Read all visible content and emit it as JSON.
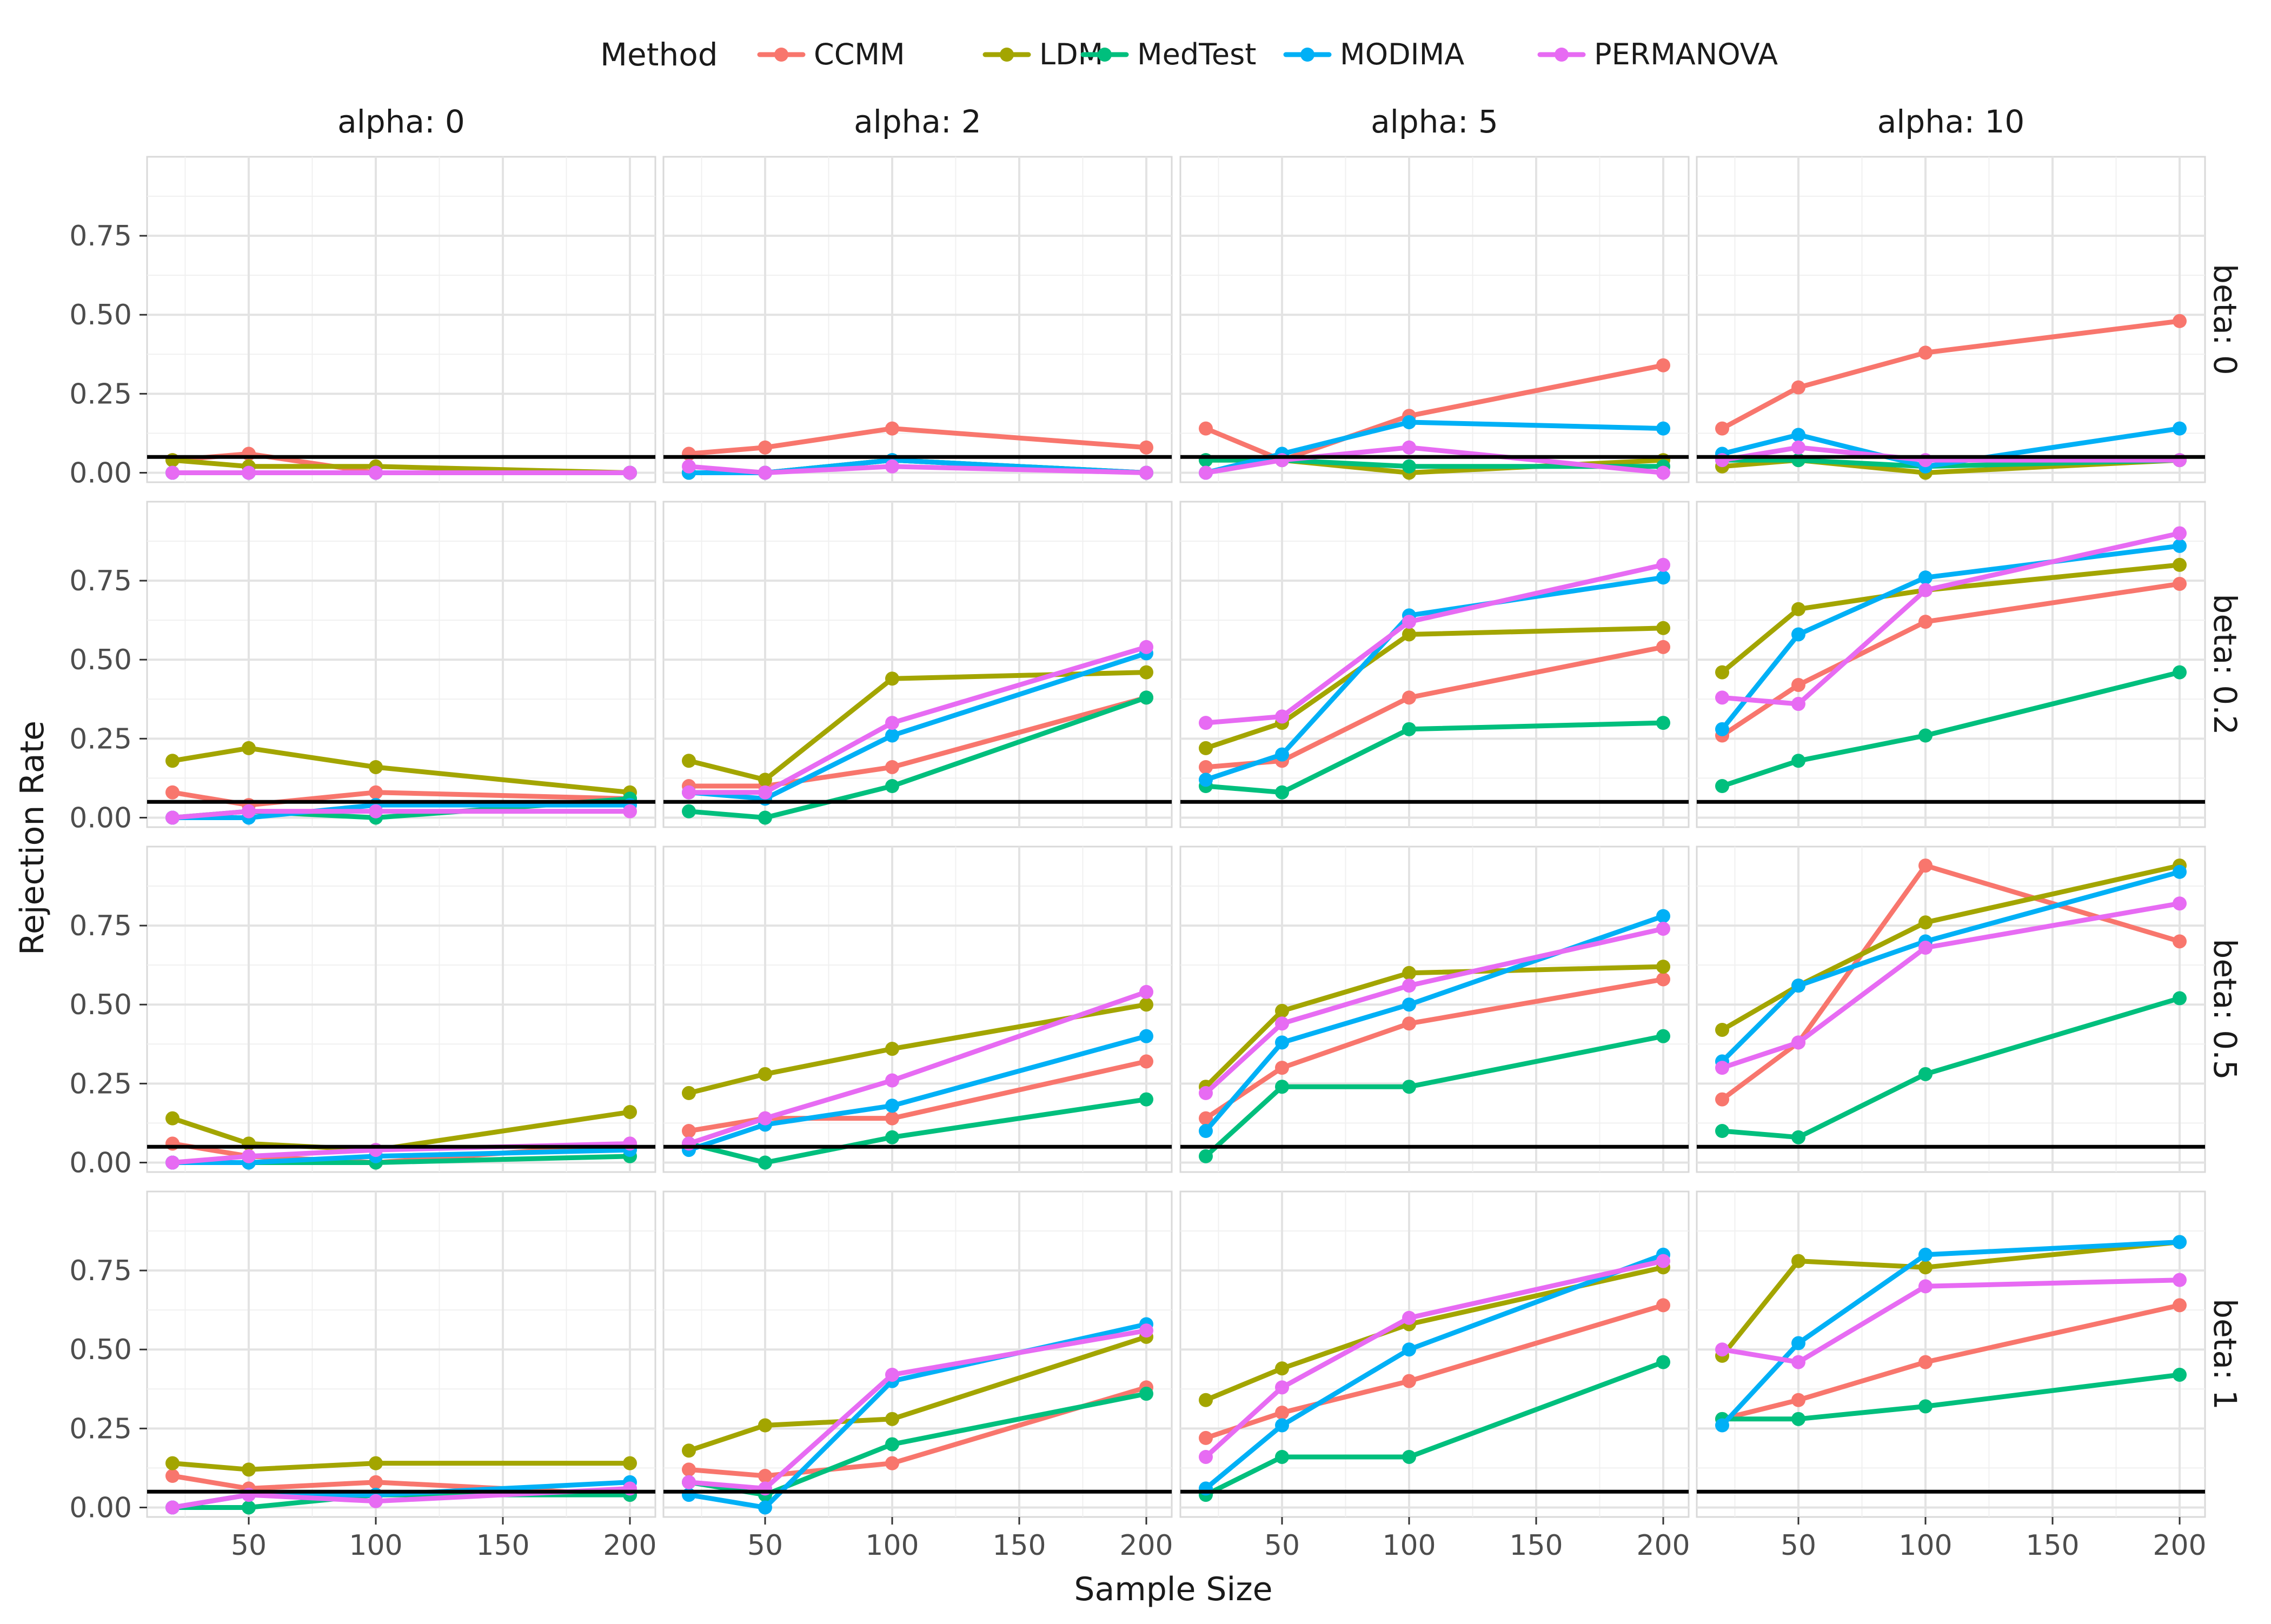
{
  "chart_data": {
    "type": "line",
    "title": "",
    "xlabel": "Sample Size",
    "ylabel": "Rejection Rate",
    "legend_title": "Method",
    "legend_position": "top",
    "grid": true,
    "xlim": [
      10,
      210
    ],
    "ylim": [
      -0.03,
      1.0
    ],
    "x_ticks": [
      50,
      100,
      150,
      200
    ],
    "y_ticks": [
      0.0,
      0.25,
      0.5,
      0.75
    ],
    "y_tick_labels": [
      "0.00",
      "0.25",
      "0.50",
      "0.75"
    ],
    "x_values": [
      20,
      50,
      100,
      200
    ],
    "reference_line": 0.05,
    "facet_cols": [
      "alpha: 0",
      "alpha: 2",
      "alpha: 5",
      "alpha: 10"
    ],
    "facet_rows": [
      "beta: 0",
      "beta: 0.2",
      "beta: 0.5",
      "beta: 1"
    ],
    "series": [
      {
        "name": "CCMM",
        "color": "#F8766D"
      },
      {
        "name": "LDM",
        "color": "#A3A500"
      },
      {
        "name": "MedTest",
        "color": "#00BF7D"
      },
      {
        "name": "MODIMA",
        "color": "#00B0F6"
      },
      {
        "name": "PERMANOVA",
        "color": "#E76BF3"
      }
    ],
    "panels": [
      [
        {
          "CCMM": [
            0.04,
            0.06,
            0.0,
            0.0
          ],
          "LDM": [
            0.04,
            0.02,
            0.02,
            0.0
          ],
          "MedTest": [
            0.0,
            0.0,
            0.0,
            0.0
          ],
          "MODIMA": [
            0.0,
            0.0,
            0.0,
            0.0
          ],
          "PERMANOVA": [
            0.0,
            0.0,
            0.0,
            0.0
          ]
        },
        {
          "CCMM": [
            0.06,
            0.08,
            0.14,
            0.08
          ],
          "LDM": [
            0.0,
            0.0,
            0.04,
            0.0
          ],
          "MedTest": [
            0.0,
            0.0,
            0.04,
            0.0
          ],
          "MODIMA": [
            0.0,
            0.0,
            0.04,
            0.0
          ],
          "PERMANOVA": [
            0.02,
            0.0,
            0.02,
            0.0
          ]
        },
        {
          "CCMM": [
            0.14,
            0.04,
            0.18,
            0.34
          ],
          "LDM": [
            0.04,
            0.04,
            0.0,
            0.04
          ],
          "MedTest": [
            0.04,
            0.04,
            0.02,
            0.02
          ],
          "MODIMA": [
            0.0,
            0.06,
            0.16,
            0.14
          ],
          "PERMANOVA": [
            0.0,
            0.04,
            0.08,
            0.0
          ]
        },
        {
          "CCMM": [
            0.14,
            0.27,
            0.38,
            0.48
          ],
          "LDM": [
            0.02,
            0.04,
            0.0,
            0.04
          ],
          "MedTest": [
            0.04,
            0.04,
            0.02,
            0.04
          ],
          "MODIMA": [
            0.06,
            0.12,
            0.02,
            0.14
          ],
          "PERMANOVA": [
            0.04,
            0.08,
            0.04,
            0.04
          ]
        }
      ],
      [
        {
          "CCMM": [
            0.08,
            0.04,
            0.08,
            0.06
          ],
          "LDM": [
            0.18,
            0.22,
            0.16,
            0.08
          ],
          "MedTest": [
            0.0,
            0.02,
            0.0,
            0.06
          ],
          "MODIMA": [
            0.0,
            0.0,
            0.04,
            0.04
          ],
          "PERMANOVA": [
            0.0,
            0.02,
            0.02,
            0.02
          ]
        },
        {
          "CCMM": [
            0.1,
            0.1,
            0.16,
            0.38
          ],
          "LDM": [
            0.18,
            0.12,
            0.44,
            0.46
          ],
          "MedTest": [
            0.02,
            0.0,
            0.1,
            0.38
          ],
          "MODIMA": [
            0.08,
            0.06,
            0.26,
            0.52
          ],
          "PERMANOVA": [
            0.08,
            0.08,
            0.3,
            0.54
          ]
        },
        {
          "CCMM": [
            0.16,
            0.18,
            0.38,
            0.54
          ],
          "LDM": [
            0.22,
            0.3,
            0.58,
            0.6
          ],
          "MedTest": [
            0.1,
            0.08,
            0.28,
            0.3
          ],
          "MODIMA": [
            0.12,
            0.2,
            0.64,
            0.76
          ],
          "PERMANOVA": [
            0.3,
            0.32,
            0.62,
            0.8
          ]
        },
        {
          "CCMM": [
            0.26,
            0.42,
            0.62,
            0.74
          ],
          "LDM": [
            0.46,
            0.66,
            0.72,
            0.8
          ],
          "MedTest": [
            0.1,
            0.18,
            0.26,
            0.46
          ],
          "MODIMA": [
            0.28,
            0.58,
            0.76,
            0.86
          ],
          "PERMANOVA": [
            0.38,
            0.36,
            0.72,
            0.9
          ]
        }
      ],
      [
        {
          "CCMM": [
            0.06,
            0.02,
            0.0,
            0.06
          ],
          "LDM": [
            0.14,
            0.06,
            0.04,
            0.16
          ],
          "MedTest": [
            0.0,
            0.0,
            0.0,
            0.02
          ],
          "MODIMA": [
            0.0,
            0.0,
            0.02,
            0.04
          ],
          "PERMANOVA": [
            0.0,
            0.02,
            0.04,
            0.06
          ]
        },
        {
          "CCMM": [
            0.1,
            0.14,
            0.14,
            0.32
          ],
          "LDM": [
            0.22,
            0.28,
            0.36,
            0.5
          ],
          "MedTest": [
            0.06,
            0.0,
            0.08,
            0.2
          ],
          "MODIMA": [
            0.04,
            0.12,
            0.18,
            0.4
          ],
          "PERMANOVA": [
            0.06,
            0.14,
            0.26,
            0.54
          ]
        },
        {
          "CCMM": [
            0.14,
            0.3,
            0.44,
            0.58
          ],
          "LDM": [
            0.24,
            0.48,
            0.6,
            0.62
          ],
          "MedTest": [
            0.02,
            0.24,
            0.24,
            0.4
          ],
          "MODIMA": [
            0.1,
            0.38,
            0.5,
            0.78
          ],
          "PERMANOVA": [
            0.22,
            0.44,
            0.56,
            0.74
          ]
        },
        {
          "CCMM": [
            0.2,
            0.38,
            0.94,
            0.7
          ],
          "LDM": [
            0.42,
            0.56,
            0.76,
            0.94
          ],
          "MedTest": [
            0.1,
            0.08,
            0.28,
            0.52
          ],
          "MODIMA": [
            0.32,
            0.56,
            0.7,
            0.92
          ],
          "PERMANOVA": [
            0.3,
            0.38,
            0.68,
            0.82
          ]
        }
      ],
      [
        {
          "CCMM": [
            0.1,
            0.06,
            0.08,
            0.04
          ],
          "LDM": [
            0.14,
            0.12,
            0.14,
            0.14
          ],
          "MedTest": [
            0.0,
            0.0,
            0.04,
            0.04
          ],
          "MODIMA": [
            0.0,
            0.04,
            0.04,
            0.08
          ],
          "PERMANOVA": [
            0.0,
            0.04,
            0.02,
            0.06
          ]
        },
        {
          "CCMM": [
            0.12,
            0.1,
            0.14,
            0.38
          ],
          "LDM": [
            0.18,
            0.26,
            0.28,
            0.54
          ],
          "MedTest": [
            0.08,
            0.04,
            0.2,
            0.36
          ],
          "MODIMA": [
            0.04,
            0.0,
            0.4,
            0.58
          ],
          "PERMANOVA": [
            0.08,
            0.06,
            0.42,
            0.56
          ]
        },
        {
          "CCMM": [
            0.22,
            0.3,
            0.4,
            0.64
          ],
          "LDM": [
            0.34,
            0.44,
            0.58,
            0.76
          ],
          "MedTest": [
            0.04,
            0.16,
            0.16,
            0.46
          ],
          "MODIMA": [
            0.06,
            0.26,
            0.5,
            0.8
          ],
          "PERMANOVA": [
            0.16,
            0.38,
            0.6,
            0.78
          ]
        },
        {
          "CCMM": [
            0.28,
            0.34,
            0.46,
            0.64
          ],
          "LDM": [
            0.48,
            0.78,
            0.76,
            0.84
          ],
          "MedTest": [
            0.28,
            0.28,
            0.32,
            0.42
          ],
          "MODIMA": [
            0.26,
            0.52,
            0.8,
            0.84
          ],
          "PERMANOVA": [
            0.5,
            0.46,
            0.7,
            0.72
          ]
        }
      ]
    ]
  }
}
